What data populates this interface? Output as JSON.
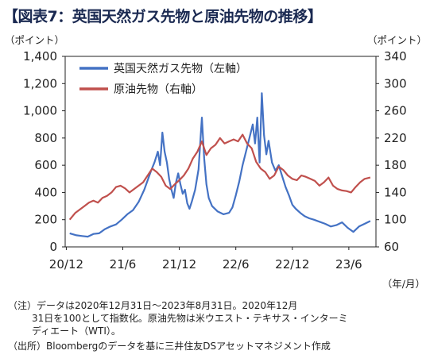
{
  "title": "【図表7：英国天然ガス先物と原油先物の推移】",
  "left_unit": "（ポイント）",
  "right_unit": "（ポイント）",
  "x_unit": "（年/月）",
  "notes": {
    "line1": "（注）データは2020年12月31日～2023年8月31日。2020年12月",
    "line2": "31日を100として指数化。原油先物は米ウエスト・テキサス・インターミ",
    "line3": "ディエート（WTI）。",
    "source": "（出所）Bloombergのデータを基に三井住友DSアセットマネジメント作成"
  },
  "colors": {
    "gas": "#4472c4",
    "oil": "#c0504d"
  },
  "chart_data": {
    "type": "line",
    "title": "【図表7：英国天然ガス先物と原油先物の推移】",
    "xlabel": "（年/月）",
    "x_ticks": [
      "20/12",
      "21/6",
      "21/12",
      "22/6",
      "22/12",
      "23/6"
    ],
    "x_range": [
      "2020-12",
      "2023-09"
    ],
    "y_left": {
      "label": "（ポイント）",
      "range": [
        0,
        1400
      ],
      "ticks": [
        "0",
        "200",
        "400",
        "600",
        "800",
        "1,000",
        "1,200",
        "1,400"
      ]
    },
    "y_right": {
      "label": "（ポイント）",
      "range": [
        60,
        340
      ],
      "ticks": [
        "60",
        "100",
        "140",
        "180",
        "220",
        "260",
        "300",
        "340"
      ]
    },
    "legend": "top-left",
    "grid": false,
    "series": [
      {
        "name": "英国天然ガス先物（左軸）",
        "axis": "left",
        "x": [
          2020.99,
          2021.05,
          2021.1,
          2021.15,
          2021.2,
          2021.25,
          2021.3,
          2021.35,
          2021.4,
          2021.45,
          2021.5,
          2021.55,
          2021.6,
          2021.65,
          2021.68,
          2021.71,
          2021.74,
          2021.77,
          2021.79,
          2021.81,
          2021.83,
          2021.85,
          2021.87,
          2021.89,
          2021.91,
          2021.93,
          2021.95,
          2021.97,
          2021.99,
          2022.01,
          2022.03,
          2022.05,
          2022.07,
          2022.1,
          2022.13,
          2022.16,
          2022.18,
          2022.2,
          2022.22,
          2022.25,
          2022.3,
          2022.35,
          2022.4,
          2022.43,
          2022.46,
          2022.49,
          2022.52,
          2022.55,
          2022.58,
          2022.61,
          2022.63,
          2022.65,
          2022.67,
          2022.69,
          2022.71,
          2022.73,
          2022.75,
          2022.78,
          2022.81,
          2022.84,
          2022.87,
          2022.9,
          2022.93,
          2022.96,
          2022.99,
          2023.03,
          2023.07,
          2023.11,
          2023.15,
          2023.2,
          2023.25,
          2023.3,
          2023.35,
          2023.4,
          2023.45,
          2023.5,
          2023.55,
          2023.6,
          2023.65
        ],
        "y": [
          100,
          85,
          80,
          75,
          95,
          100,
          130,
          150,
          165,
          200,
          240,
          270,
          330,
          420,
          490,
          560,
          620,
          700,
          600,
          840,
          700,
          620,
          500,
          420,
          360,
          470,
          540,
          460,
          390,
          420,
          320,
          280,
          330,
          420,
          570,
          950,
          650,
          460,
          360,
          300,
          260,
          240,
          250,
          290,
          380,
          480,
          600,
          700,
          800,
          900,
          760,
          950,
          620,
          1130,
          820,
          680,
          780,
          620,
          560,
          600,
          520,
          440,
          380,
          310,
          280,
          250,
          225,
          210,
          200,
          185,
          170,
          150,
          160,
          180,
          140,
          110,
          150,
          170,
          190
        ]
      },
      {
        "name": "原油先物（右軸）",
        "axis": "right",
        "x": [
          2020.99,
          2021.04,
          2021.08,
          2021.12,
          2021.16,
          2021.2,
          2021.24,
          2021.28,
          2021.32,
          2021.36,
          2021.4,
          2021.44,
          2021.48,
          2021.52,
          2021.56,
          2021.6,
          2021.64,
          2021.68,
          2021.72,
          2021.76,
          2021.8,
          2021.84,
          2021.88,
          2021.92,
          2021.96,
          2022.0,
          2022.04,
          2022.08,
          2022.12,
          2022.16,
          2022.2,
          2022.24,
          2022.28,
          2022.32,
          2022.36,
          2022.4,
          2022.44,
          2022.48,
          2022.52,
          2022.56,
          2022.6,
          2022.64,
          2022.68,
          2022.72,
          2022.76,
          2022.8,
          2022.84,
          2022.88,
          2022.92,
          2022.96,
          2023.0,
          2023.04,
          2023.08,
          2023.12,
          2023.16,
          2023.2,
          2023.24,
          2023.28,
          2023.32,
          2023.36,
          2023.4,
          2023.44,
          2023.48,
          2023.52,
          2023.56,
          2023.6,
          2023.65
        ],
        "y": [
          100,
          110,
          115,
          120,
          125,
          128,
          125,
          132,
          135,
          140,
          148,
          150,
          146,
          140,
          145,
          150,
          155,
          165,
          175,
          170,
          163,
          150,
          145,
          152,
          158,
          165,
          175,
          190,
          200,
          215,
          195,
          205,
          210,
          220,
          212,
          215,
          218,
          215,
          225,
          212,
          205,
          185,
          175,
          170,
          160,
          165,
          178,
          173,
          165,
          160,
          158,
          165,
          163,
          160,
          157,
          150,
          155,
          162,
          150,
          145,
          143,
          142,
          140,
          148,
          155,
          160,
          162
        ]
      }
    ]
  }
}
